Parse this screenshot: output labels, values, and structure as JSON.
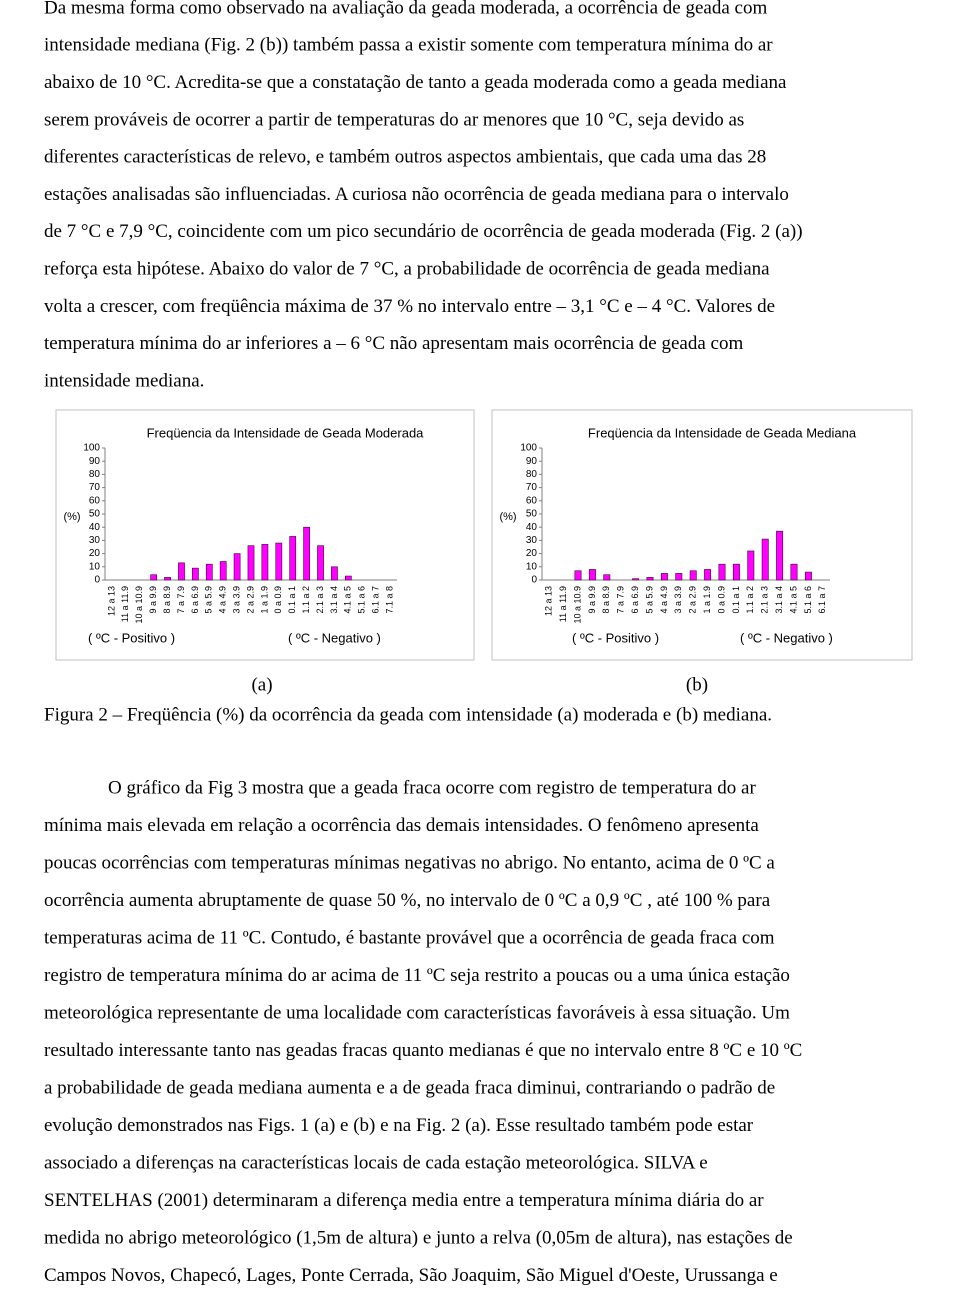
{
  "text_top": {
    "lines": [
      "Da mesma forma como observado na avaliação da geada moderada, a ocorrência de geada com",
      "intensidade mediana (Fig. 2 (b)) também passa a existir somente com temperatura mínima do ar",
      "abaixo de 10 °C. Acredita-se que a constatação de tanto a geada moderada como a geada mediana",
      "serem prováveis de ocorrer a partir de temperaturas do ar menores que 10 °C, seja devido as",
      "diferentes características de relevo, e também outros aspectos ambientais, que cada uma das 28",
      "estações analisadas são influenciadas. A curiosa não ocorrência de geada mediana para o intervalo",
      "de 7 °C e 7,9 °C, coincidente com um pico secundário de ocorrência de geada moderada (Fig. 2 (a))",
      "reforça esta hipótese. Abaixo do valor de 7 °C, a probabilidade de ocorrência de geada mediana",
      "volta a crescer, com freqüência máxima de 37 % no intervalo entre – 3,1 °C e – 4 °C. Valores de",
      "temperatura mínima do ar inferiores a – 6 °C não apresentam mais ocorrência de geada com",
      "intensidade mediana."
    ]
  },
  "chart_data": [
    {
      "type": "bar",
      "title": "Freqüencia da Intensidade de Geada Moderada",
      "ylabel": "(%)",
      "label": "(a)",
      "categories": [
        "12 a 13",
        "11 a 11.9",
        "10 a 10.9",
        "9 a 9.9",
        "8 a 8.9",
        "7 a 7.9",
        "6 a 6.9",
        "5 a 5.9",
        "4 a 4.9",
        "3 a 3.9",
        "2 a 2.9",
        "1 a 1.9",
        "0 a 0.9",
        "0.1 a 1",
        "1.1 a 2",
        "2.1 a 3",
        "3.1 a 4",
        "4.1 a 5",
        "5.1 a 6",
        "6.1 a 7",
        "7.1 a 8"
      ],
      "values": [
        0,
        0,
        0,
        4,
        2,
        13,
        9,
        12,
        14,
        20,
        26,
        27,
        28,
        33,
        40,
        26,
        10,
        3,
        0,
        0,
        0
      ],
      "color": "#ff00ff",
      "ylim": [
        0,
        100
      ],
      "yticks": [
        0,
        10,
        20,
        30,
        40,
        50,
        60,
        70,
        80,
        90,
        100
      ],
      "grid": false,
      "x_groups": [
        "( ºC - Positivo )",
        "( ºC - Negativo )"
      ]
    },
    {
      "type": "bar",
      "title": "Freqüencia da Intensidade de Geada Mediana",
      "ylabel": "(%)",
      "label": "(b)",
      "categories": [
        "12 a 13",
        "11 a 11.9",
        "10 a 10.9",
        "9 a 9.9",
        "8 a 8.9",
        "7 a 7.9",
        "6 a 6.9",
        "5 a 5.9",
        "4 a 4.9",
        "3 a 3.9",
        "2 a 2.9",
        "1 a 1.9",
        "0 a 0.9",
        "0.1 a 1",
        "1.1 a 2",
        "2.1 a 3",
        "3.1 a 4",
        "4.1 a 5",
        "5.1 a 6",
        "6.1 a 7"
      ],
      "values": [
        0,
        0,
        7,
        8,
        4,
        0,
        1,
        2,
        5,
        5,
        7,
        8,
        12,
        12,
        22,
        31,
        37,
        12,
        6,
        0
      ],
      "color": "#ff00ff",
      "ylim": [
        0,
        100
      ],
      "yticks": [
        0,
        10,
        20,
        30,
        40,
        50,
        60,
        70,
        80,
        90,
        100
      ],
      "grid": false,
      "x_groups": [
        "( ºC - Positivo )",
        "( ºC - Negativo )"
      ]
    }
  ],
  "caption": "Figura 2 – Freqüência (%) da ocorrência da geada com intensidade (a) moderada e (b) mediana.",
  "text_bottom": {
    "lines": [
      "O gráfico da Fig 3 mostra que a geada fraca ocorre com registro de temperatura do ar",
      "mínima mais elevada em relação a ocorrência das demais intensidades. O fenômeno apresenta",
      "poucas ocorrências com temperaturas mínimas negativas no abrigo. No entanto, acima de 0 ºC a",
      "ocorrência aumenta abruptamente de quase 50 %, no intervalo de 0 ºC a 0,9 ºC , até 100 % para",
      "temperaturas acima de 11 ºC. Contudo, é bastante provável que a ocorrência de geada fraca com",
      "registro de temperatura mínima do ar acima de 11 ºC seja restrito a poucas ou a uma única estação",
      "meteorológica representante de uma localidade com características favoráveis à essa situação. Um",
      "resultado interessante tanto nas geadas fracas quanto medianas é que no intervalo entre 8 ºC e 10 ºC",
      "a probabilidade de geada mediana aumenta e a de geada fraca diminui, contrariando o padrão de",
      "evolução demonstrados nas Figs. 1 (a) e (b) e na Fig. 2 (a). Esse resultado também pode estar",
      "associado a diferenças na características locais de cada estação meteorológica. SILVA e",
      "SENTELHAS (2001) determinaram a diferença media entre a temperatura mínima diária do ar",
      "medida no abrigo meteorológico (1,5m de altura) e junto a relva (0,05m de altura), nas estações de",
      "Campos Novos, Chapecó, Lages, Ponte Cerrada, São Joaquim, São Miguel d'Oeste, Urussanga e"
    ]
  }
}
